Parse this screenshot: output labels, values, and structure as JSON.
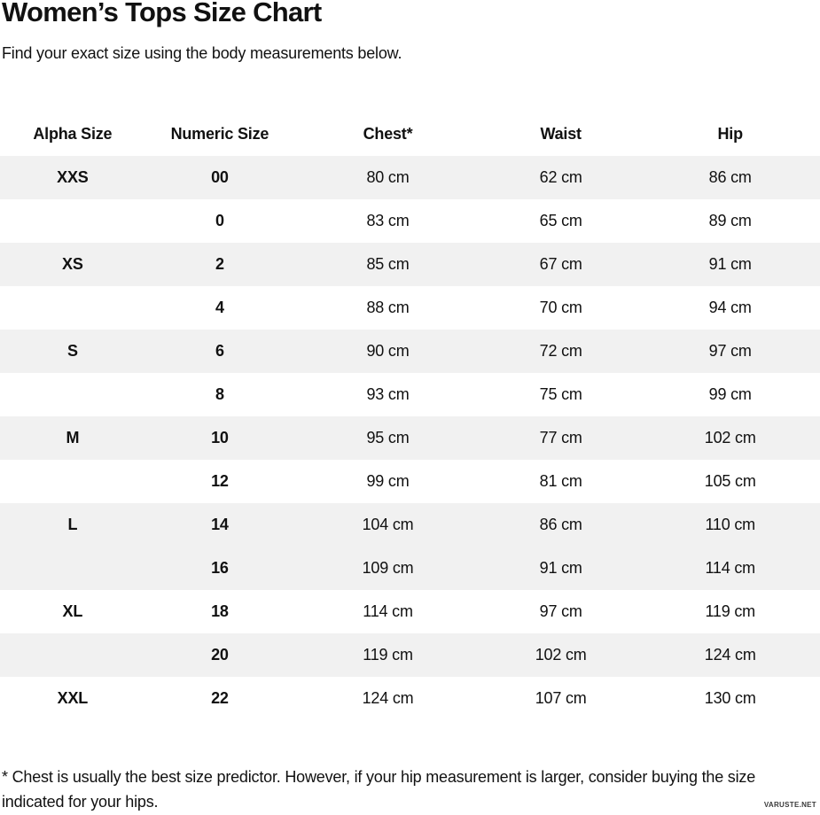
{
  "page": {
    "title": "Women’s Tops Size Chart",
    "subtitle": "Find your exact size using the body measurements below.",
    "footnote": "* Chest is usually the best size predictor. However, if your hip measurement is larger, consider buying the size indicated for your hips.",
    "watermark": "VARUSTE.NET"
  },
  "colors": {
    "row_shade": "#f1f1f1",
    "text": "#111111",
    "background": "#ffffff"
  },
  "chart_data": {
    "type": "table",
    "title": "Women’s Tops Size Chart",
    "columns": [
      "Alpha Size",
      "Numeric Size",
      "Chest*",
      "Waist",
      "Hip"
    ],
    "units": "cm",
    "rows": [
      {
        "cells": [
          "XXS",
          "00",
          "80 cm",
          "62 cm",
          "86 cm"
        ],
        "shaded": true
      },
      {
        "cells": [
          "",
          "0",
          "83 cm",
          "65 cm",
          "89 cm"
        ],
        "shaded": false
      },
      {
        "cells": [
          "XS",
          "2",
          "85 cm",
          "67 cm",
          "91 cm"
        ],
        "shaded": true
      },
      {
        "cells": [
          "",
          "4",
          "88 cm",
          "70 cm",
          "94 cm"
        ],
        "shaded": false
      },
      {
        "cells": [
          "S",
          "6",
          "90 cm",
          "72 cm",
          "97 cm"
        ],
        "shaded": true
      },
      {
        "cells": [
          "",
          "8",
          "93 cm",
          "75 cm",
          "99 cm"
        ],
        "shaded": false
      },
      {
        "cells": [
          "M",
          "10",
          "95 cm",
          "77 cm",
          "102 cm"
        ],
        "shaded": true
      },
      {
        "cells": [
          "",
          "12",
          "99 cm",
          "81 cm",
          "105 cm"
        ],
        "shaded": false
      },
      {
        "cells": [
          "L",
          "14",
          "104 cm",
          "86 cm",
          "110 cm"
        ],
        "shaded": true
      },
      {
        "cells": [
          "",
          "16",
          "109 cm",
          "91 cm",
          "114 cm"
        ],
        "shaded": true
      },
      {
        "cells": [
          "XL",
          "18",
          "114 cm",
          "97 cm",
          "119 cm"
        ],
        "shaded": false
      },
      {
        "cells": [
          "",
          "20",
          "119 cm",
          "102 cm",
          "124 cm"
        ],
        "shaded": true
      },
      {
        "cells": [
          "XXL",
          "22",
          "124 cm",
          "107 cm",
          "130 cm"
        ],
        "shaded": false
      }
    ]
  }
}
